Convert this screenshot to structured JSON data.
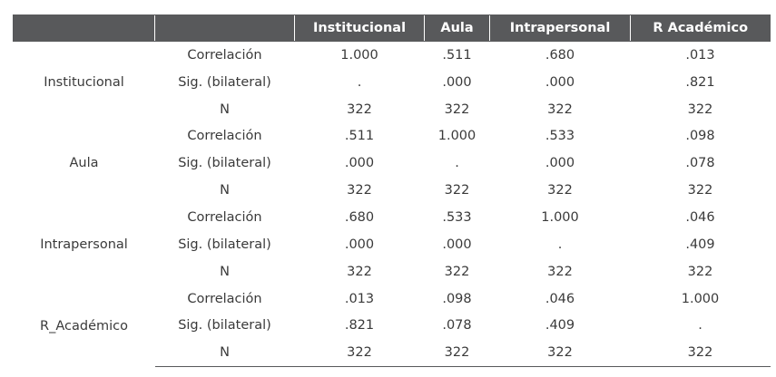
{
  "header": {
    "columns": [
      "",
      "",
      "Institucional",
      "Aula",
      "Intrapersonal",
      "R Académico"
    ]
  },
  "groups": [
    {
      "label": "Institucional",
      "rows": [
        {
          "stat": "Correlación",
          "values": [
            "1.000",
            ".511",
            ".680",
            ".013"
          ]
        },
        {
          "stat": "Sig. (bilateral)",
          "values": [
            ".",
            ".000",
            ".000",
            ".821"
          ]
        },
        {
          "stat": "N",
          "values": [
            "322",
            "322",
            "322",
            "322"
          ]
        }
      ]
    },
    {
      "label": "Aula",
      "rows": [
        {
          "stat": "Correlación",
          "values": [
            ".511",
            "1.000",
            ".533",
            ".098"
          ]
        },
        {
          "stat": "Sig. (bilateral)",
          "values": [
            ".000",
            ".",
            ".000",
            ".078"
          ]
        },
        {
          "stat": "N",
          "values": [
            "322",
            "322",
            "322",
            "322"
          ]
        }
      ]
    },
    {
      "label": "Intrapersonal",
      "rows": [
        {
          "stat": "Correlación",
          "values": [
            ".680",
            ".533",
            "1.000",
            ".046"
          ]
        },
        {
          "stat": "Sig. (bilateral)",
          "values": [
            ".000",
            ".000",
            ".",
            ".409"
          ]
        },
        {
          "stat": "N",
          "values": [
            "322",
            "322",
            "322",
            "322"
          ]
        }
      ]
    },
    {
      "label": "R_Académico",
      "rows": [
        {
          "stat": "Correlación",
          "values": [
            ".013",
            ".098",
            ".046",
            "1.000"
          ]
        },
        {
          "stat": "Sig. (bilateral)",
          "values": [
            ".821",
            ".078",
            ".409",
            "."
          ]
        },
        {
          "stat": "N",
          "values": [
            "322",
            "322",
            "322",
            "322"
          ]
        }
      ]
    }
  ],
  "colors": {
    "header_bg": "#58595b",
    "header_text": "#ffffff",
    "body_text": "#3a3a3a"
  }
}
